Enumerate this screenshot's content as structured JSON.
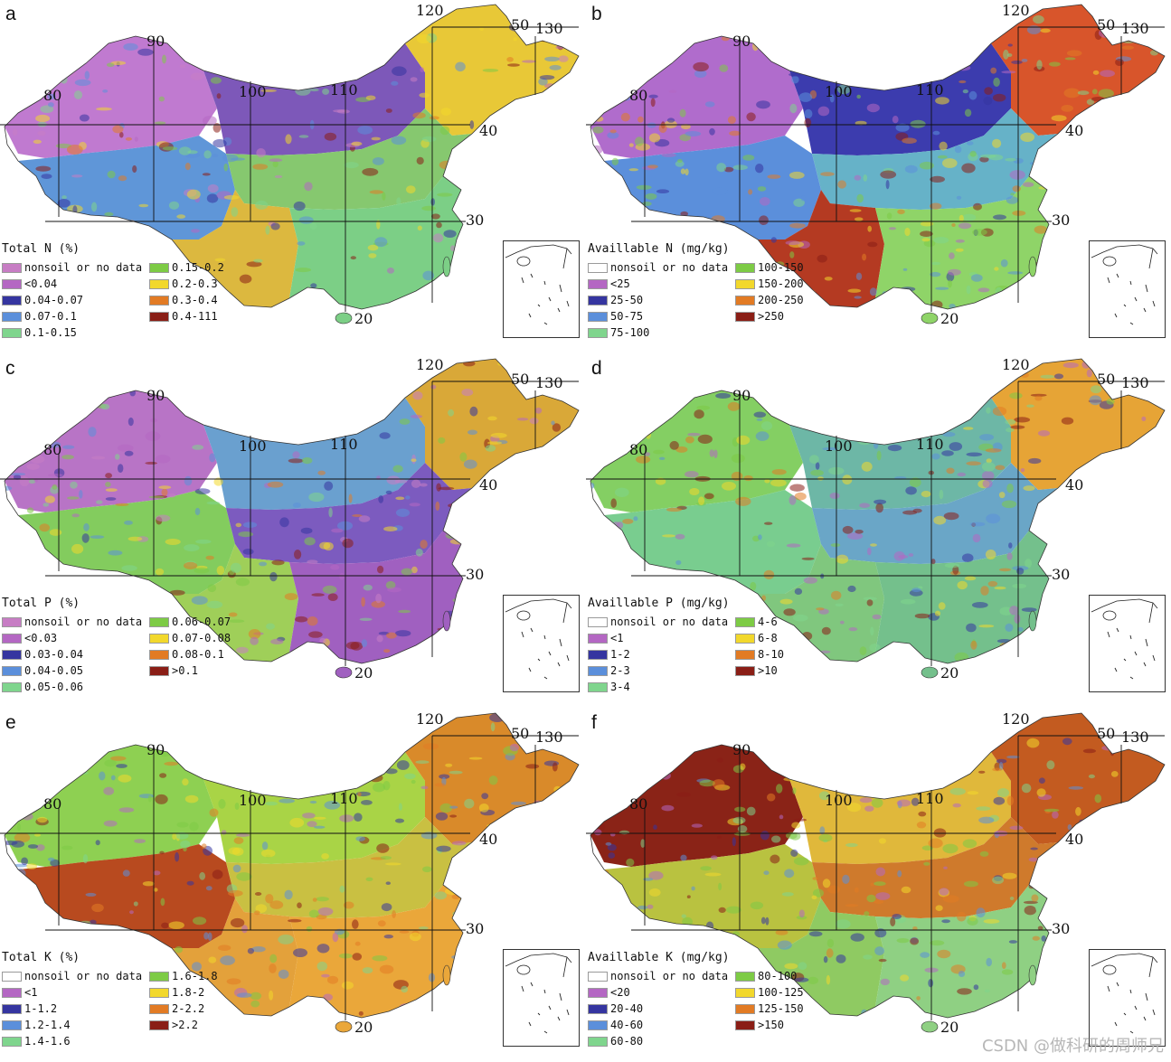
{
  "watermark": "CSDN @做科研的周师兄",
  "panels": [
    {
      "label": "a",
      "coords": {
        "lon80": "80",
        "lon90": "90",
        "lon100": "100",
        "lon110": "110",
        "lon120": "120",
        "lon130": "130",
        "lat50": "50",
        "lat40": "40",
        "lat30": "30",
        "lat20": "20"
      },
      "legend_title": "Total N (%)",
      "legend_left": [
        {
          "label": "nonsoil or no data",
          "color": "#c77dc4"
        },
        {
          "label": "<0.04",
          "color": "#b467c3"
        },
        {
          "label": "0.04-0.07",
          "color": "#3535a0"
        },
        {
          "label": "0.07-0.1",
          "color": "#5b8fdb"
        },
        {
          "label": "0.1-0.15",
          "color": "#7fd58d"
        }
      ],
      "legend_right": [
        {
          "label": "0.15-0.2",
          "color": "#7dcb45"
        },
        {
          "label": "0.2-0.3",
          "color": "#f2d82c"
        },
        {
          "label": "0.3-0.4",
          "color": "#e27b24"
        },
        {
          "label": "0.4-111",
          "color": "#8a1e16"
        }
      ],
      "map_colors": {
        "west": "#c07ad0",
        "tibet": "#5f96d8",
        "north": "#7d58b9",
        "northeast": "#e8c837",
        "east": "#7ccf86",
        "southwest": "#dcb83f",
        "central": "#86c86f"
      }
    },
    {
      "label": "b",
      "coords": {
        "lon80": "80",
        "lon90": "90",
        "lon100": "100",
        "lon110": "110",
        "lon120": "120",
        "lon130": "130",
        "lat50": "50",
        "lat40": "40",
        "lat30": "30",
        "lat20": "20"
      },
      "legend_title": "Availlable N (mg/kg)",
      "legend_left": [
        {
          "label": "nonsoil or no data",
          "color": "#ffffff"
        },
        {
          "label": "<25",
          "color": "#b467c3"
        },
        {
          "label": "25-50",
          "color": "#3535a0"
        },
        {
          "label": "50-75",
          "color": "#5b8fdb"
        },
        {
          "label": "75-100",
          "color": "#7fd58d"
        }
      ],
      "legend_right": [
        {
          "label": "100-150",
          "color": "#7dcb45"
        },
        {
          "label": "150-200",
          "color": "#f2d82c"
        },
        {
          "label": "200-250",
          "color": "#e27b24"
        },
        {
          "label": ">250",
          "color": "#8a1e16"
        }
      ],
      "map_colors": {
        "west": "#b06ccc",
        "tibet": "#5b8fdb",
        "north": "#3c3cae",
        "northeast": "#d8552b",
        "east": "#8fd468",
        "southwest": "#b43a22",
        "central": "#66b2c8"
      }
    },
    {
      "label": "c",
      "coords": {
        "lon80": "80",
        "lon90": "90",
        "lon100": "100",
        "lon110": "110",
        "lon120": "120",
        "lon130": "130",
        "lat50": "50",
        "lat40": "40",
        "lat30": "30",
        "lat20": "20"
      },
      "legend_title": "Total P (%)",
      "legend_left": [
        {
          "label": "nonsoil or no data",
          "color": "#c77dc4"
        },
        {
          "label": "<0.03",
          "color": "#b467c3"
        },
        {
          "label": "0.03-0.04",
          "color": "#3535a0"
        },
        {
          "label": "0.04-0.05",
          "color": "#5b8fdb"
        },
        {
          "label": "0.05-0.06",
          "color": "#7fd58d"
        }
      ],
      "legend_right": [
        {
          "label": "0.06-0.07",
          "color": "#7dcb45"
        },
        {
          "label": "0.07-0.08",
          "color": "#f2d82c"
        },
        {
          "label": "0.08-0.1",
          "color": "#e27b24"
        },
        {
          "label": ">0.1",
          "color": "#8a1e16"
        }
      ],
      "map_colors": {
        "west": "#b874c6",
        "tibet": "#83cc5e",
        "north": "#6aa0cf",
        "northeast": "#d9a838",
        "east": "#a060c0",
        "southwest": "#9fcf59",
        "central": "#7c5bbf"
      }
    },
    {
      "label": "d",
      "coords": {
        "lon80": "80",
        "lon90": "90",
        "lon100": "100",
        "lon110": "110",
        "lon120": "120",
        "lon130": "130",
        "lat50": "50",
        "lat40": "40",
        "lat30": "30",
        "lat20": "20"
      },
      "legend_title": "Availlable P (mg/kg)",
      "legend_left": [
        {
          "label": "nonsoil or no data",
          "color": "#ffffff"
        },
        {
          "label": "<1",
          "color": "#b467c3"
        },
        {
          "label": "1-2",
          "color": "#3535a0"
        },
        {
          "label": "2-3",
          "color": "#5b8fdb"
        },
        {
          "label": "3-4",
          "color": "#7fd58d"
        }
      ],
      "legend_right": [
        {
          "label": "4-6",
          "color": "#7dcb45"
        },
        {
          "label": "6-8",
          "color": "#f2d82c"
        },
        {
          "label": "8-10",
          "color": "#e27b24"
        },
        {
          "label": ">10",
          "color": "#8a1e16"
        }
      ],
      "map_colors": {
        "west": "#84cf63",
        "tibet": "#79cd8f",
        "north": "#6db7a6",
        "northeast": "#e6a436",
        "east": "#74c08c",
        "southwest": "#80c77e",
        "central": "#6aa6c7"
      }
    },
    {
      "label": "e",
      "coords": {
        "lon80": "80",
        "lon90": "90",
        "lon100": "100",
        "lon110": "110",
        "lon120": "120",
        "lon130": "130",
        "lat50": "50",
        "lat40": "40",
        "lat30": "30",
        "lat20": "20"
      },
      "legend_title": "Total K (%)",
      "legend_left": [
        {
          "label": "nonsoil or no data",
          "color": "#ffffff"
        },
        {
          "label": "<1",
          "color": "#b467c3"
        },
        {
          "label": "1-1.2",
          "color": "#3535a0"
        },
        {
          "label": "1.2-1.4",
          "color": "#5b8fdb"
        },
        {
          "label": "1.4-1.6",
          "color": "#7fd58d"
        }
      ],
      "legend_right": [
        {
          "label": "1.6-1.8",
          "color": "#7dcb45"
        },
        {
          "label": "1.8-2",
          "color": "#f2d82c"
        },
        {
          "label": "2-2.2",
          "color": "#e27b24"
        },
        {
          "label": ">2.2",
          "color": "#8a1e16"
        }
      ],
      "map_colors": {
        "west": "#8ed052",
        "tibet": "#b84a1f",
        "north": "#a9d446",
        "northeast": "#d98a2a",
        "east": "#eaa73a",
        "southwest": "#e3a13b",
        "central": "#c9c042"
      }
    },
    {
      "label": "f",
      "coords": {
        "lon80": "80",
        "lon90": "90",
        "lon100": "100",
        "lon110": "110",
        "lon120": "120",
        "lon130": "130",
        "lat50": "50",
        "lat40": "40",
        "lat30": "30",
        "lat20": "20"
      },
      "legend_title": "Availlable K (mg/kg)",
      "legend_left": [
        {
          "label": "nonsoil or no data",
          "color": "#ffffff"
        },
        {
          "label": "<20",
          "color": "#b467c3"
        },
        {
          "label": "20-40",
          "color": "#3535a0"
        },
        {
          "label": "40-60",
          "color": "#5b8fdb"
        },
        {
          "label": "60-80",
          "color": "#7fd58d"
        }
      ],
      "legend_right": [
        {
          "label": "80-100",
          "color": "#7dcb45"
        },
        {
          "label": "100-125",
          "color": "#f2d82c"
        },
        {
          "label": "125-150",
          "color": "#e27b24"
        },
        {
          "label": ">150",
          "color": "#8a1e16"
        }
      ],
      "map_colors": {
        "west": "#8a2317",
        "tibet": "#b9c240",
        "north": "#e0b83b",
        "northeast": "#c35b20",
        "east": "#8fd083",
        "southwest": "#8fca62",
        "central": "#cf7a2c"
      }
    }
  ]
}
